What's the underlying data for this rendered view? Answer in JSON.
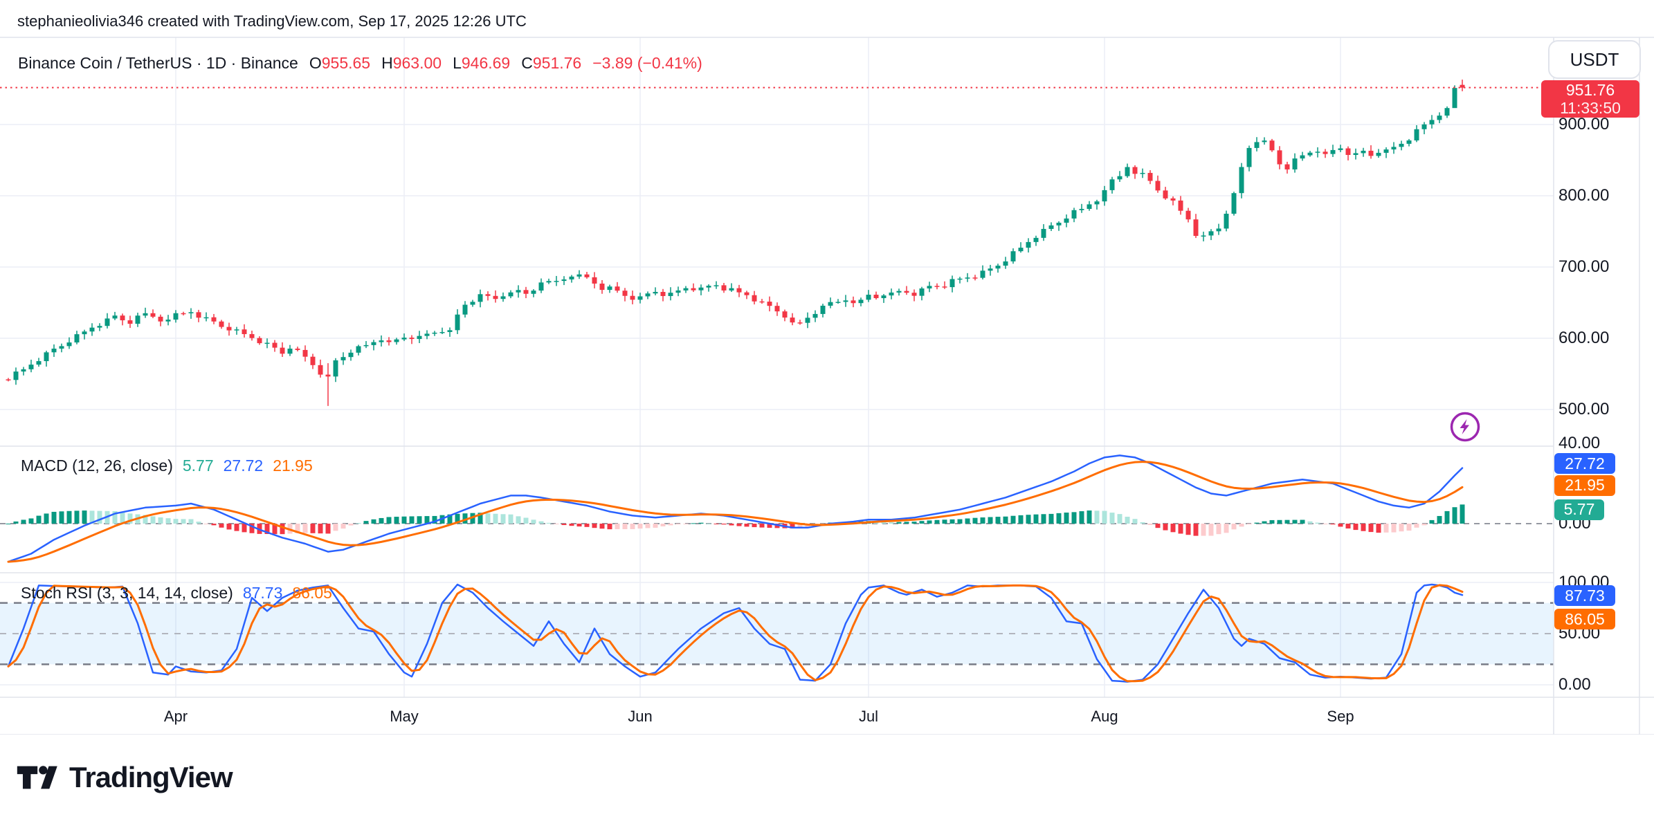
{
  "header": {
    "attribution": "stephanieolivia346 created with TradingView.com, Sep 17, 2025 12:26 UTC"
  },
  "symbol_bar": {
    "title": "Binance Coin / TetherUS · 1D · Binance",
    "ohlc": [
      {
        "label": "O",
        "value": "955.65"
      },
      {
        "label": "H",
        "value": "963.00"
      },
      {
        "label": "L",
        "value": "946.69"
      },
      {
        "label": "C",
        "value": "951.76"
      }
    ],
    "change": "−3.89 (−0.41%)"
  },
  "price_scale": {
    "currency_button": "USDT",
    "labels": [
      "900.00",
      "800.00",
      "700.00",
      "600.00",
      "500.00"
    ],
    "last_price_badge": {
      "price": "951.76",
      "countdown": "11:33:50"
    }
  },
  "macd_pane": {
    "label": "MACD (12, 26, close)",
    "hist_value": "5.77",
    "macd_value": "27.72",
    "signal_value": "21.95",
    "axis_labels": [
      {
        "text": "40.00",
        "v": 40
      },
      {
        "text": "0.00",
        "v": 0
      }
    ],
    "badges": [
      {
        "text": "27.72",
        "color": "#2962ff",
        "v": 30
      },
      {
        "text": "21.95",
        "color": "#ff6d00",
        "v": 19
      },
      {
        "text": "5.77",
        "color": "#22ab94",
        "v": 7
      }
    ]
  },
  "stoch_pane": {
    "label": "Stoch RSI (3, 3, 14, 14, close)",
    "k_value": "87.73",
    "d_value": "86.05",
    "axis_labels": [
      {
        "text": "100.00",
        "v": 100
      },
      {
        "text": "50.00",
        "v": 50
      },
      {
        "text": "0.00",
        "v": 0
      }
    ],
    "badges": [
      {
        "text": "87.73",
        "color": "#2962ff",
        "v": 87
      },
      {
        "text": "86.05",
        "color": "#ff6d00",
        "v": 64
      }
    ]
  },
  "time_axis": {
    "months": [
      "Apr",
      "May",
      "Jun",
      "Jul",
      "Aug",
      "Sep"
    ],
    "month_start_day_index": [
      22,
      52,
      83,
      113,
      144,
      175
    ]
  },
  "footer": {
    "logo_text": "TradingView"
  },
  "colors": {
    "up": "#089981",
    "down": "#f23645",
    "accent_red": "#f23645",
    "macd_line": "#2962ff",
    "signal_line": "#ff6d00",
    "hist_teal": "#22ab94",
    "hist_grow_above": "#089981",
    "hist_fall_above": "#ace5dc",
    "hist_fall_below": "#f23645",
    "hist_grow_below": "#fccbcd",
    "stoch_k": "#2962ff",
    "stoch_d": "#ff6d00",
    "grid": "#eceef5",
    "separator": "#e0e3eb",
    "text": "#131722",
    "band_fill": "rgba(33,150,243,0.10)",
    "lightning": "#9c27b0"
  },
  "chart_data": {
    "type": "candlestick-with-indicators",
    "symbol": "Binance Coin / TetherUS",
    "interval": "1D",
    "exchange": "Binance",
    "last_candle": {
      "open": 955.65,
      "high": 963.0,
      "low": 946.69,
      "close": 951.76
    },
    "price_axis_ticks": [
      900,
      800,
      700,
      600,
      500
    ],
    "price_ylim_visible": [
      435,
      1005
    ],
    "num_days": 192,
    "close_keypoints": [
      [
        0,
        545
      ],
      [
        2,
        556
      ],
      [
        5,
        578
      ],
      [
        8,
        596
      ],
      [
        11,
        615
      ],
      [
        14,
        630
      ],
      [
        16,
        622
      ],
      [
        18,
        634
      ],
      [
        20,
        626
      ],
      [
        22,
        633
      ],
      [
        24,
        638
      ],
      [
        26,
        628
      ],
      [
        28,
        618
      ],
      [
        31,
        606
      ],
      [
        34,
        592
      ],
      [
        36,
        580
      ],
      [
        37,
        588
      ],
      [
        39,
        574
      ],
      [
        41,
        552
      ],
      [
        42,
        543
      ],
      [
        43,
        568
      ],
      [
        45,
        582
      ],
      [
        47,
        590
      ],
      [
        49,
        600
      ],
      [
        51,
        597
      ],
      [
        52,
        602
      ],
      [
        54,
        600
      ],
      [
        56,
        608
      ],
      [
        58,
        615
      ],
      [
        60,
        648
      ],
      [
        62,
        658
      ],
      [
        64,
        655
      ],
      [
        66,
        668
      ],
      [
        68,
        663
      ],
      [
        70,
        674
      ],
      [
        72,
        680
      ],
      [
        74,
        690
      ],
      [
        76,
        684
      ],
      [
        78,
        672
      ],
      [
        80,
        666
      ],
      [
        82,
        657
      ],
      [
        83,
        656
      ],
      [
        85,
        666
      ],
      [
        87,
        660
      ],
      [
        89,
        672
      ],
      [
        91,
        668
      ],
      [
        93,
        675
      ],
      [
        95,
        666
      ],
      [
        97,
        660
      ],
      [
        99,
        648
      ],
      [
        101,
        638
      ],
      [
        104,
        620
      ],
      [
        106,
        636
      ],
      [
        108,
        648
      ],
      [
        110,
        654
      ],
      [
        112,
        652
      ],
      [
        113,
        660
      ],
      [
        115,
        656
      ],
      [
        117,
        666
      ],
      [
        119,
        663
      ],
      [
        121,
        672
      ],
      [
        123,
        676
      ],
      [
        125,
        683
      ],
      [
        127,
        688
      ],
      [
        129,
        696
      ],
      [
        131,
        710
      ],
      [
        133,
        726
      ],
      [
        135,
        744
      ],
      [
        137,
        756
      ],
      [
        139,
        770
      ],
      [
        141,
        780
      ],
      [
        143,
        795
      ],
      [
        144,
        812
      ],
      [
        146,
        828
      ],
      [
        147,
        842
      ],
      [
        149,
        830
      ],
      [
        151,
        810
      ],
      [
        153,
        790
      ],
      [
        155,
        768
      ],
      [
        156,
        748
      ],
      [
        157,
        742
      ],
      [
        159,
        756
      ],
      [
        161,
        800
      ],
      [
        162,
        840
      ],
      [
        163,
        868
      ],
      [
        164,
        880
      ],
      [
        165,
        872
      ],
      [
        166,
        862
      ],
      [
        167,
        846
      ],
      [
        168,
        840
      ],
      [
        170,
        856
      ],
      [
        172,
        866
      ],
      [
        174,
        862
      ],
      [
        175,
        868
      ],
      [
        176,
        860
      ],
      [
        177,
        855
      ],
      [
        178,
        862
      ],
      [
        179,
        856
      ],
      [
        180,
        864
      ],
      [
        181,
        870
      ],
      [
        182,
        866
      ],
      [
        183,
        874
      ],
      [
        184,
        880
      ],
      [
        185,
        888
      ],
      [
        186,
        896
      ],
      [
        187,
        906
      ],
      [
        188,
        916
      ],
      [
        189,
        928
      ],
      [
        190,
        948
      ],
      [
        191,
        951.76
      ]
    ],
    "wick_overrides": {
      "42": [
        565,
        505
      ],
      "190": [
        955,
        926
      ],
      "191": [
        963,
        946.69
      ]
    },
    "macd": {
      "params": "(12, 26, close)",
      "current": {
        "macd": 27.72,
        "signal": 21.95,
        "histogram": 5.77
      },
      "macd_keypoints": [
        [
          0,
          -19
        ],
        [
          3,
          -15
        ],
        [
          6,
          -8
        ],
        [
          10,
          -1
        ],
        [
          14,
          5
        ],
        [
          18,
          8
        ],
        [
          22,
          9
        ],
        [
          24,
          10
        ],
        [
          27,
          7
        ],
        [
          30,
          2
        ],
        [
          33,
          -3
        ],
        [
          36,
          -7
        ],
        [
          39,
          -10
        ],
        [
          42,
          -14
        ],
        [
          44,
          -13
        ],
        [
          47,
          -9
        ],
        [
          50,
          -5
        ],
        [
          53,
          -2
        ],
        [
          56,
          1
        ],
        [
          58,
          4
        ],
        [
          60,
          7
        ],
        [
          62,
          10
        ],
        [
          64,
          12
        ],
        [
          66,
          14
        ],
        [
          68,
          14
        ],
        [
          70,
          13
        ],
        [
          73,
          11
        ],
        [
          76,
          9
        ],
        [
          79,
          6
        ],
        [
          82,
          4
        ],
        [
          85,
          3
        ],
        [
          88,
          4
        ],
        [
          91,
          5
        ],
        [
          94,
          4
        ],
        [
          97,
          2
        ],
        [
          100,
          0
        ],
        [
          103,
          -2
        ],
        [
          105,
          -2
        ],
        [
          108,
          0
        ],
        [
          111,
          1
        ],
        [
          113,
          2
        ],
        [
          116,
          2
        ],
        [
          119,
          3
        ],
        [
          122,
          5
        ],
        [
          125,
          7
        ],
        [
          128,
          10
        ],
        [
          131,
          13
        ],
        [
          134,
          17
        ],
        [
          137,
          21
        ],
        [
          140,
          26
        ],
        [
          142,
          30
        ],
        [
          144,
          33
        ],
        [
          146,
          34
        ],
        [
          148,
          33
        ],
        [
          150,
          30
        ],
        [
          152,
          26
        ],
        [
          154,
          22
        ],
        [
          156,
          18
        ],
        [
          158,
          15
        ],
        [
          160,
          14
        ],
        [
          162,
          16
        ],
        [
          164,
          18
        ],
        [
          166,
          20
        ],
        [
          168,
          21
        ],
        [
          170,
          22
        ],
        [
          172,
          21
        ],
        [
          174,
          20
        ],
        [
          176,
          17
        ],
        [
          178,
          14
        ],
        [
          180,
          11
        ],
        [
          182,
          9
        ],
        [
          184,
          8
        ],
        [
          186,
          10
        ],
        [
          187,
          13
        ],
        [
          188,
          16
        ],
        [
          189,
          20
        ],
        [
          190,
          24
        ],
        [
          191,
          27.72
        ]
      ]
    },
    "stoch_rsi": {
      "params": "(3, 3, 14, 14, close)",
      "current": {
        "k": 87.73,
        "d": 86.05
      },
      "bands": {
        "upper": 80,
        "middle": 50,
        "lower": 20
      },
      "k_keypoints": [
        [
          0,
          18
        ],
        [
          2,
          55
        ],
        [
          4,
          97
        ],
        [
          8,
          96
        ],
        [
          13,
          95
        ],
        [
          15,
          96
        ],
        [
          17,
          60
        ],
        [
          19,
          12
        ],
        [
          21,
          10
        ],
        [
          22,
          18
        ],
        [
          24,
          13
        ],
        [
          26,
          12
        ],
        [
          28,
          14
        ],
        [
          30,
          35
        ],
        [
          32,
          85
        ],
        [
          34,
          72
        ],
        [
          36,
          85
        ],
        [
          38,
          92
        ],
        [
          40,
          95
        ],
        [
          42,
          97
        ],
        [
          44,
          75
        ],
        [
          46,
          55
        ],
        [
          48,
          52
        ],
        [
          50,
          30
        ],
        [
          52,
          12
        ],
        [
          53,
          8
        ],
        [
          55,
          40
        ],
        [
          57,
          80
        ],
        [
          59,
          98
        ],
        [
          61,
          90
        ],
        [
          63,
          75
        ],
        [
          65,
          62
        ],
        [
          67,
          50
        ],
        [
          69,
          38
        ],
        [
          71,
          62
        ],
        [
          73,
          40
        ],
        [
          75,
          22
        ],
        [
          77,
          55
        ],
        [
          79,
          30
        ],
        [
          81,
          18
        ],
        [
          83,
          8
        ],
        [
          85,
          12
        ],
        [
          88,
          35
        ],
        [
          91,
          55
        ],
        [
          94,
          70
        ],
        [
          96,
          75
        ],
        [
          98,
          55
        ],
        [
          100,
          40
        ],
        [
          102,
          35
        ],
        [
          104,
          5
        ],
        [
          106,
          4
        ],
        [
          108,
          20
        ],
        [
          110,
          60
        ],
        [
          112,
          88
        ],
        [
          113,
          95
        ],
        [
          115,
          97
        ],
        [
          117,
          90
        ],
        [
          118,
          88
        ],
        [
          120,
          93
        ],
        [
          122,
          86
        ],
        [
          124,
          90
        ],
        [
          126,
          97
        ],
        [
          128,
          96
        ],
        [
          130,
          97
        ],
        [
          133,
          97
        ],
        [
          135,
          96
        ],
        [
          137,
          85
        ],
        [
          139,
          62
        ],
        [
          141,
          60
        ],
        [
          143,
          25
        ],
        [
          145,
          4
        ],
        [
          147,
          3
        ],
        [
          149,
          5
        ],
        [
          151,
          20
        ],
        [
          153,
          45
        ],
        [
          155,
          70
        ],
        [
          157,
          93
        ],
        [
          159,
          75
        ],
        [
          161,
          45
        ],
        [
          162,
          38
        ],
        [
          163,
          45
        ],
        [
          165,
          40
        ],
        [
          167,
          26
        ],
        [
          169,
          22
        ],
        [
          171,
          10
        ],
        [
          173,
          7
        ],
        [
          175,
          8
        ],
        [
          177,
          7
        ],
        [
          179,
          6
        ],
        [
          181,
          7
        ],
        [
          183,
          30
        ],
        [
          184,
          60
        ],
        [
          185,
          90
        ],
        [
          186,
          97
        ],
        [
          187,
          98
        ],
        [
          188,
          97
        ],
        [
          189,
          95
        ],
        [
          190,
          90
        ],
        [
          191,
          87.73
        ]
      ]
    }
  }
}
